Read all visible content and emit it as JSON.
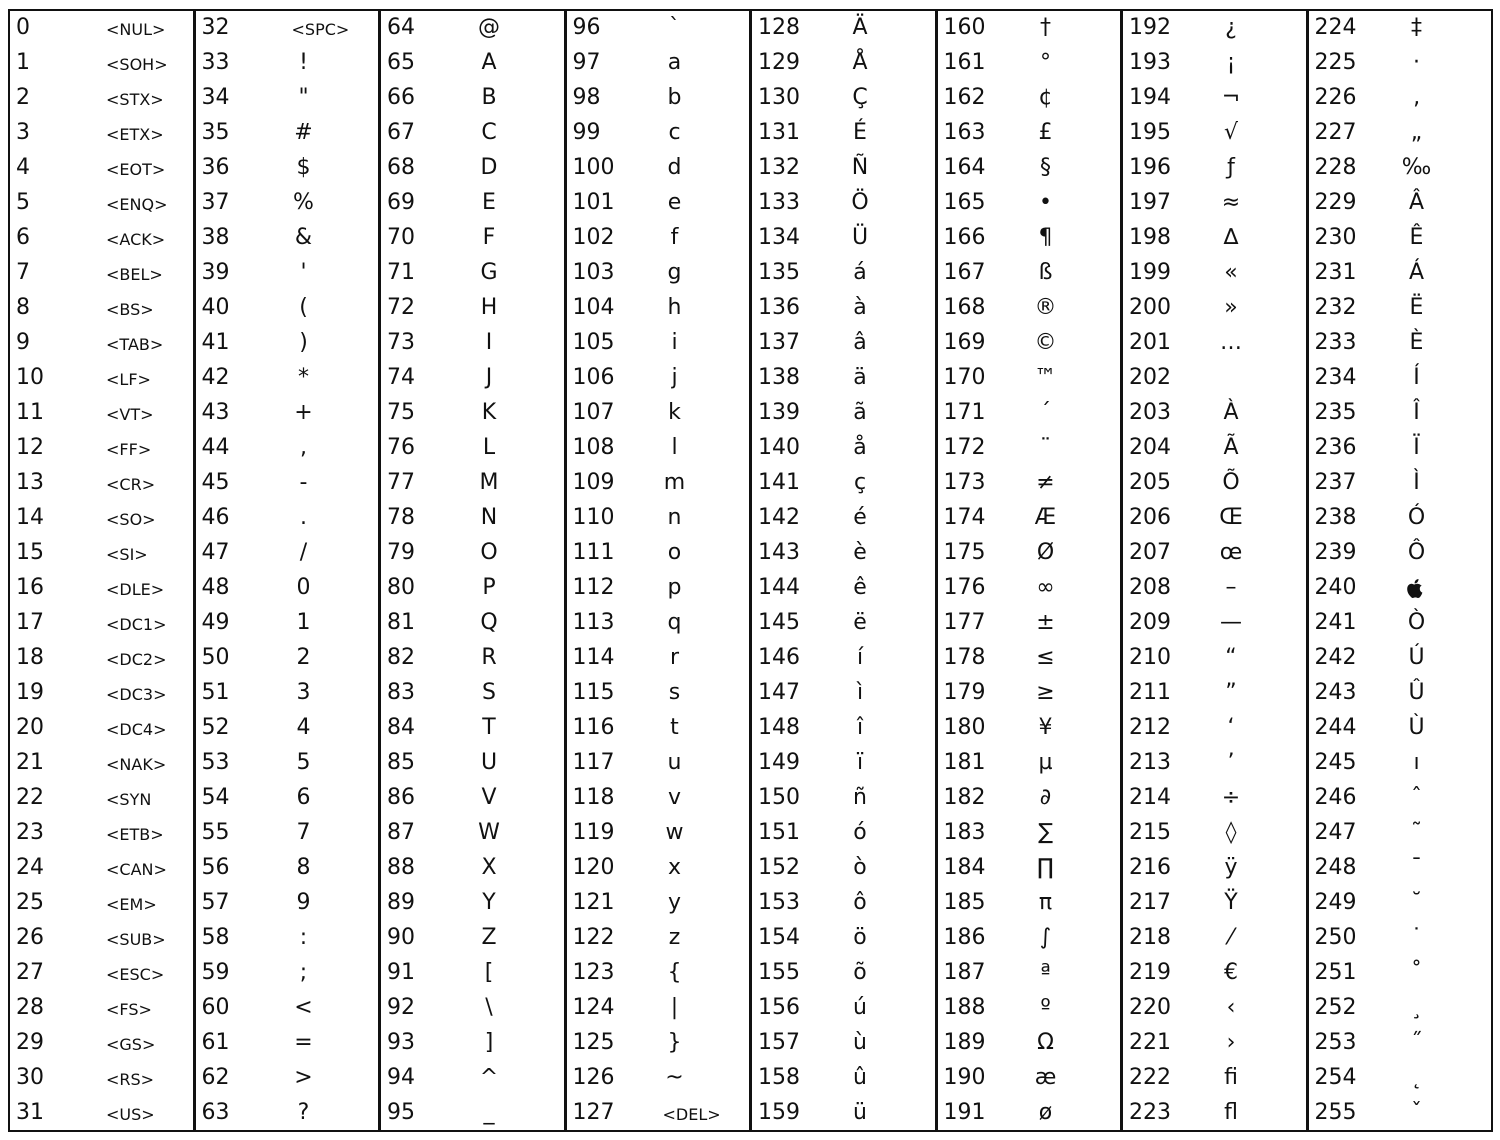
{
  "entries": [
    [
      "0",
      "<NUL>"
    ],
    [
      "1",
      "<SOH>"
    ],
    [
      "2",
      "<STX>"
    ],
    [
      "3",
      "<ETX>"
    ],
    [
      "4",
      "<EOT>"
    ],
    [
      "5",
      "<ENQ>"
    ],
    [
      "6",
      "<ACK>"
    ],
    [
      "7",
      "<BEL>"
    ],
    [
      "8",
      "<BS>"
    ],
    [
      "9",
      "<TAB>"
    ],
    [
      "10",
      "<LF>"
    ],
    [
      "11",
      "<VT>"
    ],
    [
      "12",
      "<FF>"
    ],
    [
      "13",
      "<CR>"
    ],
    [
      "14",
      "<SO>"
    ],
    [
      "15",
      "<SI>"
    ],
    [
      "16",
      "<DLE>"
    ],
    [
      "17",
      "<DC1>"
    ],
    [
      "18",
      "<DC2>"
    ],
    [
      "19",
      "<DC3>"
    ],
    [
      "20",
      "<DC4>"
    ],
    [
      "21",
      "<NAK>"
    ],
    [
      "22",
      "<SYN"
    ],
    [
      "23",
      "<ETB>"
    ],
    [
      "24",
      "<CAN>"
    ],
    [
      "25",
      "<EM>"
    ],
    [
      "26",
      "<SUB>"
    ],
    [
      "27",
      "<ESC>"
    ],
    [
      "28",
      "<FS>"
    ],
    [
      "29",
      "<GS>"
    ],
    [
      "30",
      "<RS>"
    ],
    [
      "31",
      "<US>"
    ],
    [
      "32",
      "<SPC>"
    ],
    [
      "33",
      "!"
    ],
    [
      "34",
      "\""
    ],
    [
      "35",
      "#"
    ],
    [
      "36",
      "$"
    ],
    [
      "37",
      "%"
    ],
    [
      "38",
      "&"
    ],
    [
      "39",
      "'"
    ],
    [
      "40",
      "("
    ],
    [
      "41",
      ")"
    ],
    [
      "42",
      "*"
    ],
    [
      "43",
      "+"
    ],
    [
      "44",
      ","
    ],
    [
      "45",
      "-"
    ],
    [
      "46",
      "."
    ],
    [
      "47",
      "/"
    ],
    [
      "48",
      "0"
    ],
    [
      "49",
      "1"
    ],
    [
      "50",
      "2"
    ],
    [
      "51",
      "3"
    ],
    [
      "52",
      "4"
    ],
    [
      "53",
      "5"
    ],
    [
      "54",
      "6"
    ],
    [
      "55",
      "7"
    ],
    [
      "56",
      "8"
    ],
    [
      "57",
      "9"
    ],
    [
      "58",
      ":"
    ],
    [
      "59",
      ";"
    ],
    [
      "60",
      "<"
    ],
    [
      "61",
      "="
    ],
    [
      "62",
      ">"
    ],
    [
      "63",
      "?"
    ],
    [
      "64",
      "@"
    ],
    [
      "65",
      "A"
    ],
    [
      "66",
      "B"
    ],
    [
      "67",
      "C"
    ],
    [
      "68",
      "D"
    ],
    [
      "69",
      "E"
    ],
    [
      "70",
      "F"
    ],
    [
      "71",
      "G"
    ],
    [
      "72",
      "H"
    ],
    [
      "73",
      "I"
    ],
    [
      "74",
      "J"
    ],
    [
      "75",
      "K"
    ],
    [
      "76",
      "L"
    ],
    [
      "77",
      "M"
    ],
    [
      "78",
      "N"
    ],
    [
      "79",
      "O"
    ],
    [
      "80",
      "P"
    ],
    [
      "81",
      "Q"
    ],
    [
      "82",
      "R"
    ],
    [
      "83",
      "S"
    ],
    [
      "84",
      "T"
    ],
    [
      "85",
      "U"
    ],
    [
      "86",
      "V"
    ],
    [
      "87",
      "W"
    ],
    [
      "88",
      "X"
    ],
    [
      "89",
      "Y"
    ],
    [
      "90",
      "Z"
    ],
    [
      "91",
      "["
    ],
    [
      "92",
      "\\"
    ],
    [
      "93",
      "]"
    ],
    [
      "94",
      "^"
    ],
    [
      "95",
      "_"
    ],
    [
      "96",
      "`"
    ],
    [
      "97",
      "a"
    ],
    [
      "98",
      "b"
    ],
    [
      "99",
      "c"
    ],
    [
      "100",
      "d"
    ],
    [
      "101",
      "e"
    ],
    [
      "102",
      "f"
    ],
    [
      "103",
      "g"
    ],
    [
      "104",
      "h"
    ],
    [
      "105",
      "i"
    ],
    [
      "106",
      "j"
    ],
    [
      "107",
      "k"
    ],
    [
      "108",
      "l"
    ],
    [
      "109",
      "m"
    ],
    [
      "110",
      "n"
    ],
    [
      "111",
      "o"
    ],
    [
      "112",
      "p"
    ],
    [
      "113",
      "q"
    ],
    [
      "114",
      "r"
    ],
    [
      "115",
      "s"
    ],
    [
      "116",
      "t"
    ],
    [
      "117",
      "u"
    ],
    [
      "118",
      "v"
    ],
    [
      "119",
      "w"
    ],
    [
      "120",
      "x"
    ],
    [
      "121",
      "y"
    ],
    [
      "122",
      "z"
    ],
    [
      "123",
      "{"
    ],
    [
      "124",
      "|"
    ],
    [
      "125",
      "}"
    ],
    [
      "126",
      "~"
    ],
    [
      "127",
      "<DEL>"
    ],
    [
      "128",
      "Ä"
    ],
    [
      "129",
      "Å"
    ],
    [
      "130",
      "Ç"
    ],
    [
      "131",
      "É"
    ],
    [
      "132",
      "Ñ"
    ],
    [
      "133",
      "Ö"
    ],
    [
      "134",
      "Ü"
    ],
    [
      "135",
      "á"
    ],
    [
      "136",
      "à"
    ],
    [
      "137",
      "â"
    ],
    [
      "138",
      "ä"
    ],
    [
      "139",
      "ã"
    ],
    [
      "140",
      "å"
    ],
    [
      "141",
      "ç"
    ],
    [
      "142",
      "é"
    ],
    [
      "143",
      "è"
    ],
    [
      "144",
      "ê"
    ],
    [
      "145",
      "ë"
    ],
    [
      "146",
      "í"
    ],
    [
      "147",
      "ì"
    ],
    [
      "148",
      "î"
    ],
    [
      "149",
      "ï"
    ],
    [
      "150",
      "ñ"
    ],
    [
      "151",
      "ó"
    ],
    [
      "152",
      "ò"
    ],
    [
      "153",
      "ô"
    ],
    [
      "154",
      "ö"
    ],
    [
      "155",
      "õ"
    ],
    [
      "156",
      "ú"
    ],
    [
      "157",
      "ù"
    ],
    [
      "158",
      "û"
    ],
    [
      "159",
      "ü"
    ],
    [
      "160",
      "†"
    ],
    [
      "161",
      "°"
    ],
    [
      "162",
      "¢"
    ],
    [
      "163",
      "£"
    ],
    [
      "164",
      "§"
    ],
    [
      "165",
      "•"
    ],
    [
      "166",
      "¶"
    ],
    [
      "167",
      "ß"
    ],
    [
      "168",
      "®"
    ],
    [
      "169",
      "©"
    ],
    [
      "170",
      "™"
    ],
    [
      "171",
      "´"
    ],
    [
      "172",
      "¨"
    ],
    [
      "173",
      "≠"
    ],
    [
      "174",
      "Æ"
    ],
    [
      "175",
      "Ø"
    ],
    [
      "176",
      "∞"
    ],
    [
      "177",
      "±"
    ],
    [
      "178",
      "≤"
    ],
    [
      "179",
      "≥"
    ],
    [
      "180",
      "¥"
    ],
    [
      "181",
      "µ"
    ],
    [
      "182",
      "∂"
    ],
    [
      "183",
      "∑"
    ],
    [
      "184",
      "∏"
    ],
    [
      "185",
      "π"
    ],
    [
      "186",
      "∫"
    ],
    [
      "187",
      "ª"
    ],
    [
      "188",
      "º"
    ],
    [
      "189",
      "Ω"
    ],
    [
      "190",
      "æ"
    ],
    [
      "191",
      "ø"
    ],
    [
      "192",
      "¿"
    ],
    [
      "193",
      "¡"
    ],
    [
      "194",
      "¬"
    ],
    [
      "195",
      "√"
    ],
    [
      "196",
      "ƒ"
    ],
    [
      "197",
      "≈"
    ],
    [
      "198",
      "∆"
    ],
    [
      "199",
      "«"
    ],
    [
      "200",
      "»"
    ],
    [
      "201",
      "…"
    ],
    [
      "202",
      ""
    ],
    [
      "203",
      "À"
    ],
    [
      "204",
      "Ã"
    ],
    [
      "205",
      "Õ"
    ],
    [
      "206",
      "Œ"
    ],
    [
      "207",
      "œ"
    ],
    [
      "208",
      "–"
    ],
    [
      "209",
      "—"
    ],
    [
      "210",
      "“"
    ],
    [
      "211",
      "”"
    ],
    [
      "212",
      "‘"
    ],
    [
      "213",
      "’"
    ],
    [
      "214",
      "÷"
    ],
    [
      "215",
      "◊"
    ],
    [
      "216",
      "ÿ"
    ],
    [
      "217",
      "Ÿ"
    ],
    [
      "218",
      "⁄"
    ],
    [
      "219",
      "€"
    ],
    [
      "220",
      "‹"
    ],
    [
      "221",
      "›"
    ],
    [
      "222",
      "ﬁ"
    ],
    [
      "223",
      "ﬂ"
    ],
    [
      "224",
      "‡"
    ],
    [
      "225",
      "·"
    ],
    [
      "226",
      "‚"
    ],
    [
      "227",
      "„"
    ],
    [
      "228",
      "‰"
    ],
    [
      "229",
      "Â"
    ],
    [
      "230",
      "Ê"
    ],
    [
      "231",
      "Á"
    ],
    [
      "232",
      "Ë"
    ],
    [
      "233",
      "È"
    ],
    [
      "234",
      "Í"
    ],
    [
      "235",
      "Î"
    ],
    [
      "236",
      "Ï"
    ],
    [
      "237",
      "Ì"
    ],
    [
      "238",
      "Ó"
    ],
    [
      "239",
      "Ô"
    ],
    [
      "240",
      ""
    ],
    [
      "241",
      "Ò"
    ],
    [
      "242",
      "Ú"
    ],
    [
      "243",
      "Û"
    ],
    [
      "244",
      "Ù"
    ],
    [
      "245",
      "ı"
    ],
    [
      "246",
      "ˆ"
    ],
    [
      "247",
      "˜"
    ],
    [
      "248",
      "¯"
    ],
    [
      "249",
      "˘"
    ],
    [
      "250",
      "˙"
    ],
    [
      "251",
      "˚"
    ],
    [
      "252",
      "¸"
    ],
    [
      "253",
      "˝"
    ],
    [
      "254",
      "˛"
    ],
    [
      "255",
      "ˇ"
    ]
  ],
  "icons": {
    "240": "apple-logo-icon"
  }
}
